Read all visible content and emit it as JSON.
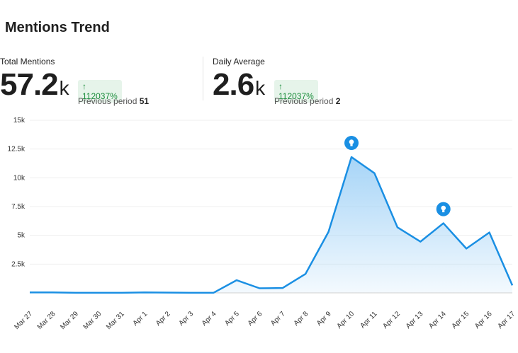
{
  "header": {
    "title": "Mentions Trend"
  },
  "stats": {
    "total": {
      "label": "Total Mentions",
      "value": "57.2",
      "unit": "k",
      "change": "↑ 112037%",
      "prev_label": "Previous period",
      "prev_value": "51"
    },
    "daily": {
      "label": "Daily Average",
      "value": "2.6",
      "unit": "k",
      "change": "↑ 112037%",
      "prev_label": "Previous period",
      "prev_value": "2"
    }
  },
  "colors": {
    "line": "#1a8fe3",
    "area_top": "#9dd0f6",
    "change_bg": "#e6f4ea",
    "change_text": "#1e8e3e",
    "marker": "#1a8fe3"
  },
  "chart_data": {
    "type": "area",
    "title": "",
    "xlabel": "",
    "ylabel": "",
    "categories": [
      "Mar 27",
      "Mar 28",
      "Mar 29",
      "Mar 30",
      "Mar 31",
      "Apr 1",
      "Apr 2",
      "Apr 3",
      "Apr 4",
      "Apr 5",
      "Apr 6",
      "Apr 7",
      "Apr 8",
      "Apr 9",
      "Apr 10",
      "Apr 11",
      "Apr 12",
      "Apr 13",
      "Apr 14",
      "Apr 15",
      "Apr 16",
      "Apr 17"
    ],
    "values": [
      40,
      40,
      10,
      5,
      5,
      40,
      20,
      10,
      10,
      1100,
      400,
      420,
      1650,
      5300,
      11800,
      10400,
      5700,
      4450,
      6050,
      3850,
      5250,
      650
    ],
    "ylim": [
      0,
      15000
    ],
    "yticks": [
      2500,
      5000,
      7500,
      10000,
      12500,
      15000
    ],
    "ytick_labels": [
      "2.5k",
      "5k",
      "7.5k",
      "10k",
      "12.5k",
      "15k"
    ],
    "grid": true,
    "annotations": [
      {
        "category": "Apr 10",
        "icon": "lightbulb-icon"
      },
      {
        "category": "Apr 14",
        "icon": "lightbulb-icon"
      }
    ]
  }
}
